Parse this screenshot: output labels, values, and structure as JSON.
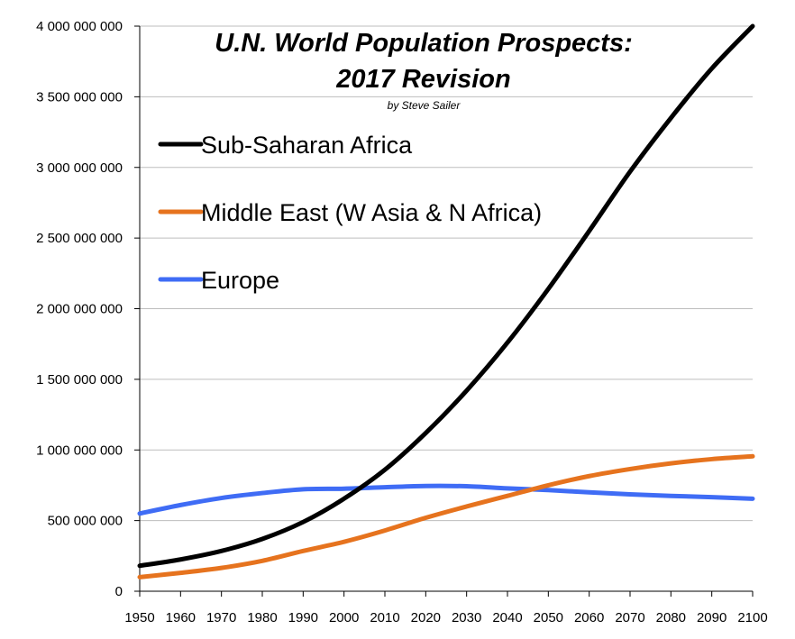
{
  "chart_data": {
    "type": "line",
    "title": "U.N. World Population Prospects:",
    "title_line2": "2017 Revision",
    "subtitle": "by Steve Sailer",
    "xlabel": "",
    "ylabel": "",
    "xlim": [
      1950,
      2100
    ],
    "ylim": [
      0,
      4000000000
    ],
    "grid": true,
    "legend_placement": "top-left",
    "x_ticks": [
      1950,
      1960,
      1970,
      1980,
      1990,
      2000,
      2010,
      2020,
      2030,
      2040,
      2050,
      2060,
      2070,
      2080,
      2090,
      2100
    ],
    "x_tick_labels": [
      "1950",
      "1960",
      "1970",
      "1980",
      "1990",
      "2000",
      "2010",
      "2020",
      "2030",
      "2040",
      "2050",
      "2060",
      "2070",
      "2080",
      "2090",
      "2100"
    ],
    "y_ticks": [
      0,
      500000000,
      1000000000,
      1500000000,
      2000000000,
      2500000000,
      3000000000,
      3500000000,
      4000000000
    ],
    "y_tick_labels": [
      "0",
      "500 000 000",
      "1 000 000 000",
      "1 500 000 000",
      "2 000 000 000",
      "2 500 000 000",
      "3 000 000 000",
      "3 500 000 000",
      "4 000 000 000"
    ],
    "x": [
      1950,
      1960,
      1970,
      1980,
      1990,
      2000,
      2010,
      2020,
      2030,
      2040,
      2050,
      2060,
      2070,
      2080,
      2090,
      2100
    ],
    "series": [
      {
        "name": "Sub-Saharan Africa",
        "color": "#000000",
        "values": [
          180000000,
          225000000,
          285000000,
          370000000,
          490000000,
          655000000,
          860000000,
          1120000000,
          1420000000,
          1760000000,
          2140000000,
          2550000000,
          2970000000,
          3350000000,
          3700000000,
          4000000000
        ]
      },
      {
        "name": "Middle East (W Asia & N Africa)",
        "color": "#e6731e",
        "values": [
          100000000,
          130000000,
          165000000,
          215000000,
          285000000,
          350000000,
          430000000,
          520000000,
          600000000,
          675000000,
          750000000,
          815000000,
          865000000,
          905000000,
          935000000,
          955000000
        ]
      },
      {
        "name": "Europe",
        "color": "#3f6cf5",
        "values": [
          550000000,
          610000000,
          660000000,
          695000000,
          722000000,
          726000000,
          736000000,
          745000000,
          743000000,
          728000000,
          716000000,
          700000000,
          686000000,
          675000000,
          666000000,
          655000000
        ]
      }
    ]
  }
}
